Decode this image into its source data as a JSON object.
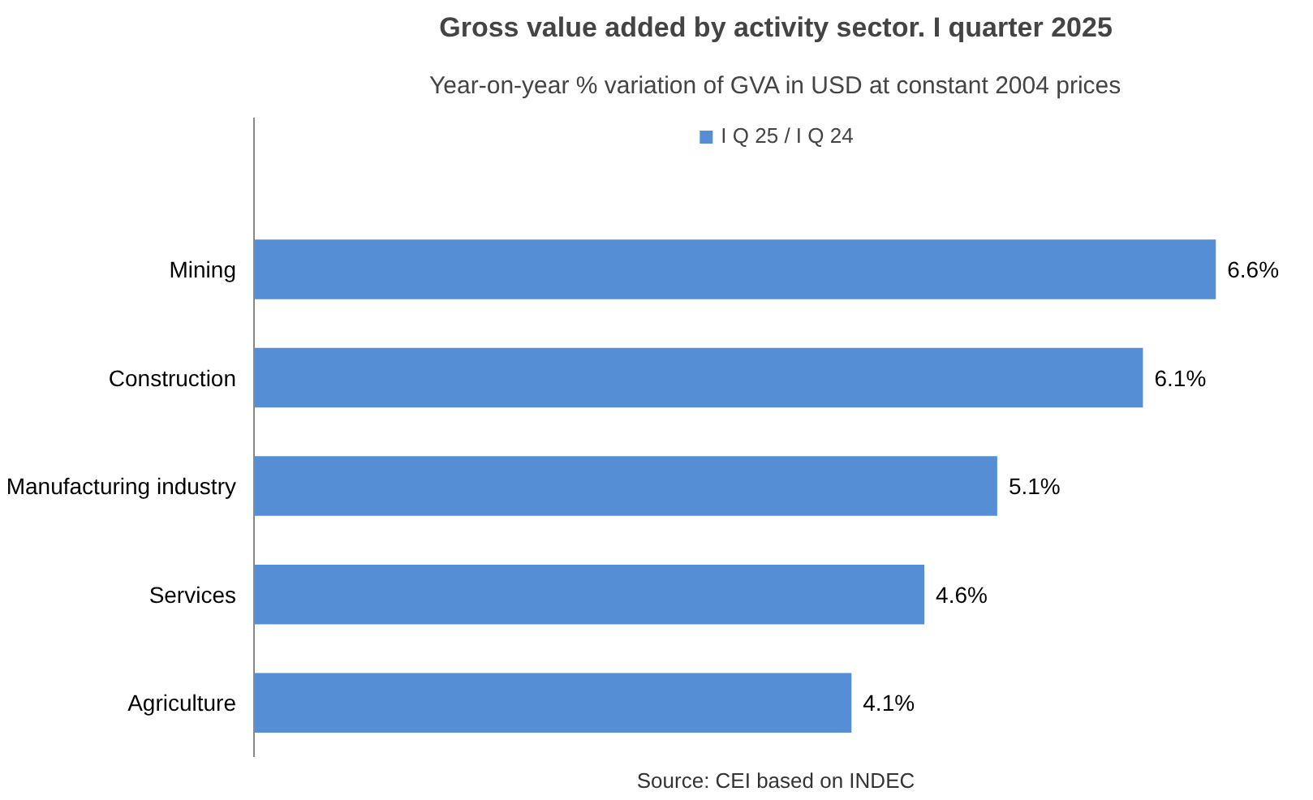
{
  "chart_data": {
    "type": "bar",
    "orientation": "horizontal",
    "title": "Gross value added by activity sector. I quarter 2025",
    "subtitle": "Year-on-year % variation of GVA in USD at constant 2004 prices",
    "categories": [
      "Mining",
      "Construction",
      "Manufacturing industry",
      "Services",
      "Agriculture"
    ],
    "series": [
      {
        "name": "I Q 25 / I Q 24",
        "color": "#558ed5",
        "values": [
          6.6,
          6.1,
          5.1,
          4.6,
          4.1
        ],
        "value_labels": [
          "6.6%",
          "6.1%",
          "5.1%",
          "4.6%",
          "4.1%"
        ]
      }
    ],
    "legend": "top",
    "grid": false,
    "tick_labels": "y",
    "annotations": [
      "Source: CEI based on INDEC"
    ]
  }
}
